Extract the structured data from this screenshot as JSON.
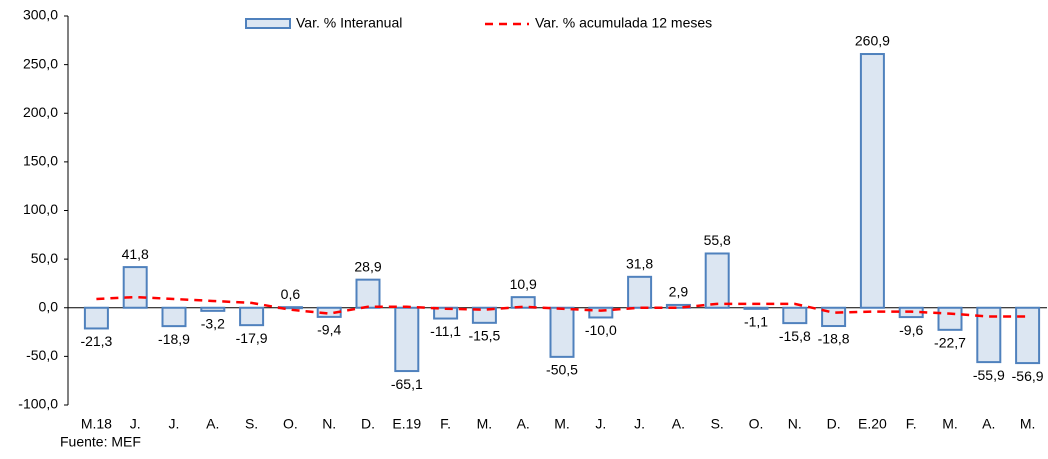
{
  "chart_data": {
    "type": "bar",
    "categories": [
      "M.18",
      "J.",
      "J.",
      "A.",
      "S.",
      "O.",
      "N.",
      "D.",
      "E.19",
      "F.",
      "M.",
      "A.",
      "M.",
      "J.",
      "J.",
      "A.",
      "S.",
      "O.",
      "N.",
      "D.",
      "E.20",
      "F.",
      "M.",
      "A.",
      "M."
    ],
    "series": [
      {
        "name": "Var. % Interanual",
        "type": "bar",
        "color": "#dce6f2",
        "stroke": "#4f81bd",
        "values": [
          -21.3,
          41.8,
          -18.9,
          -3.2,
          -17.9,
          0.6,
          -9.4,
          28.9,
          -65.1,
          -11.1,
          -15.5,
          10.9,
          -50.5,
          -10.0,
          31.8,
          2.9,
          55.8,
          -1.1,
          -15.8,
          -18.8,
          260.9,
          -9.6,
          -22.7,
          -55.9,
          -56.9
        ],
        "value_labels": [
          "-21,3",
          "41,8",
          "-18,9",
          "-3,2",
          "-17,9",
          "0,6",
          "-9,4",
          "28,9",
          "-65,1",
          "-11,1",
          "-15,5",
          "10,9",
          "-50,5",
          "-10,0",
          "31,8",
          "2,9",
          "55,8",
          "-1,1",
          "-15,8",
          "-18,8",
          "260,9",
          "-9,6",
          "-22,7",
          "-55,9",
          "-56,9"
        ]
      },
      {
        "name": "Var. % acumulada 12 meses",
        "type": "line",
        "color": "#ff0000",
        "values": [
          9,
          11,
          9,
          7,
          5,
          -2,
          -6,
          1,
          1,
          -1,
          -2,
          1,
          -1,
          -3,
          0,
          0,
          4,
          4,
          4,
          -5,
          -4,
          -4,
          -6,
          -9,
          -9
        ]
      }
    ],
    "ylim": [
      -100,
      300
    ],
    "yticks": [
      {
        "value": -100,
        "label": "-100,0"
      },
      {
        "value": -50,
        "label": "-50,0"
      },
      {
        "value": 0,
        "label": "0,0"
      },
      {
        "value": 50,
        "label": "50,0"
      },
      {
        "value": 100,
        "label": "100,0"
      },
      {
        "value": 150,
        "label": "150,0"
      },
      {
        "value": 200,
        "label": "200,0"
      },
      {
        "value": 250,
        "label": "250,0"
      },
      {
        "value": 300,
        "label": "300,0"
      }
    ],
    "source": "Fuente: MEF"
  }
}
